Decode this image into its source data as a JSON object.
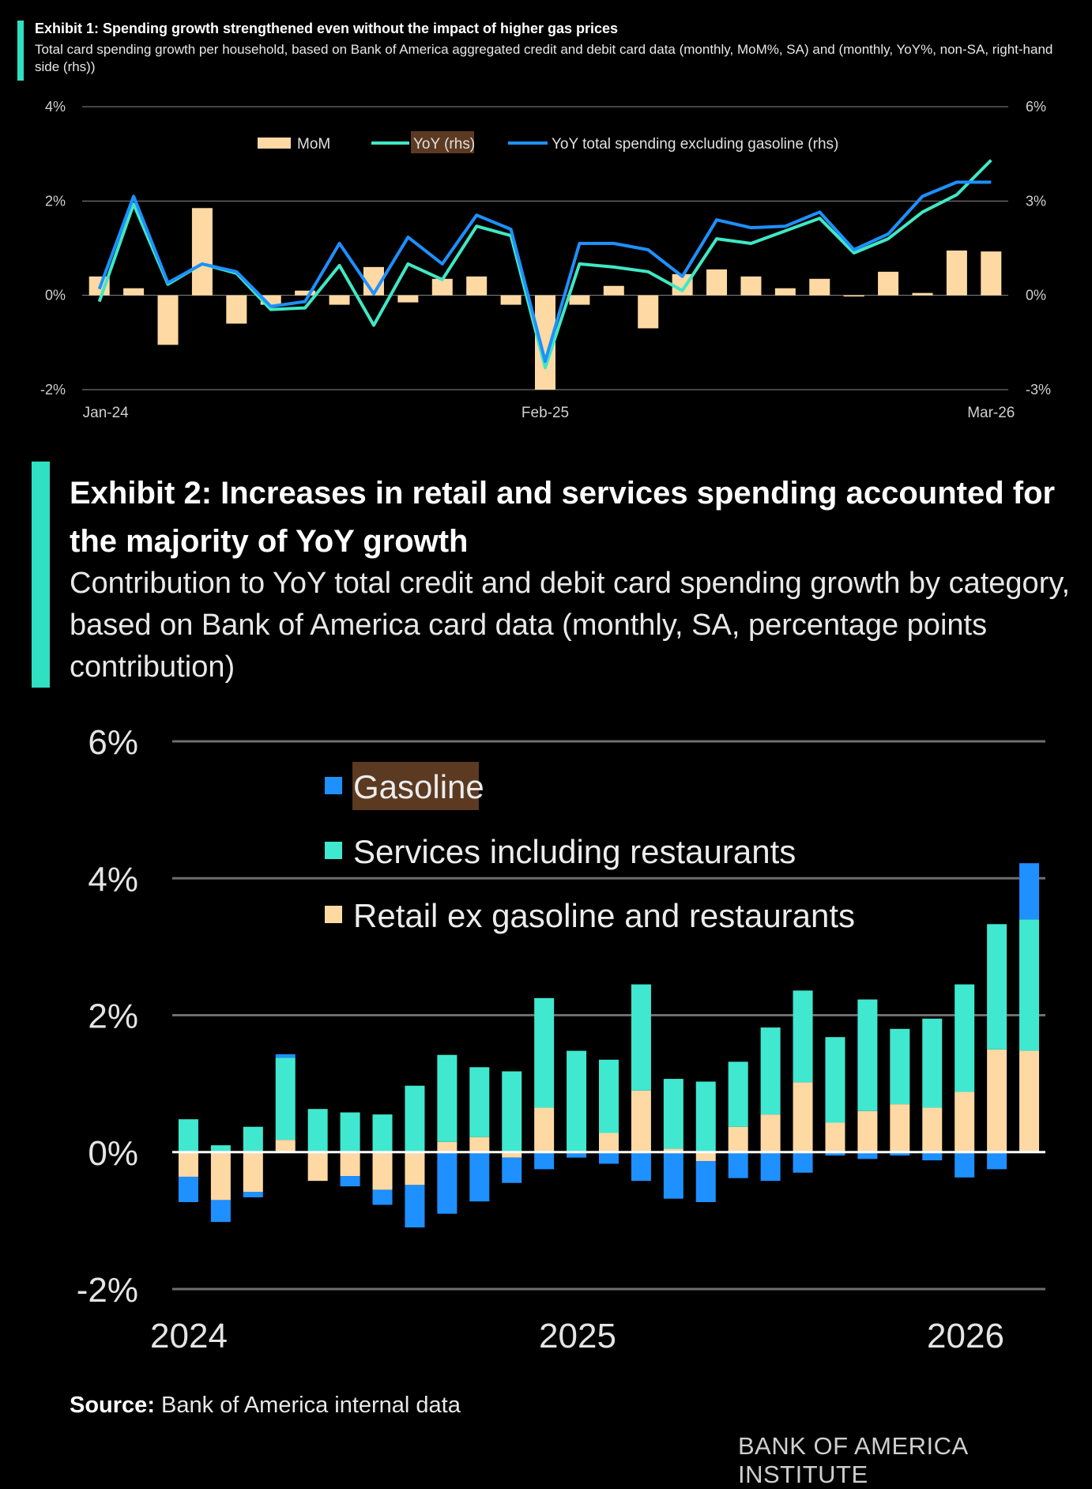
{
  "exhibit1": {
    "title": "Exhibit 1: Spending growth strengthened even without the impact of higher gas prices",
    "subtitle": "Total card spending growth per household, based on Bank of America aggregated credit and debit card data (monthly, MoM%, SA) and (monthly, YoY%, non-SA, right-hand side (rhs))"
  },
  "exhibit2": {
    "title": "Exhibit 2: Increases in retail and services spending accounted for the majority of YoY growth",
    "subtitle": "Contribution to YoY total credit and debit card spending growth by category, based on Bank of America card data (monthly, SA, percentage points contribution)"
  },
  "footer": {
    "source_label": "Source:",
    "source_text": " Bank of America internal data",
    "brand": "BANK OF AMERICA INSTITUTE"
  },
  "colors": {
    "mom": "#fed9a3",
    "yoy": "#40e8c4",
    "yoy_ex_gas": "#1e90ff",
    "gasoline": "#1e90ff",
    "services": "#40e8cf",
    "retail": "#fed9a3",
    "accent": "#2fe0c2",
    "highlight": "#5c3a22"
  },
  "chart_data": [
    {
      "type": "bar+line",
      "title": "Exhibit 1",
      "categories": [
        "Jan-24",
        "Feb-24",
        "Mar-24",
        "Apr-24",
        "May-24",
        "Jun-24",
        "Jul-24",
        "Aug-24",
        "Sep-24",
        "Oct-24",
        "Nov-24",
        "Dec-24",
        "Jan-25",
        "Feb-25",
        "Mar-25",
        "Apr-25",
        "May-25",
        "Jun-25",
        "Jul-25",
        "Aug-25",
        "Sep-25",
        "Oct-25",
        "Nov-25",
        "Dec-25",
        "Jan-26",
        "Feb-26",
        "Mar-26"
      ],
      "x_tick_labels": [
        "Jan-24",
        "Feb-25",
        "Mar-26"
      ],
      "y_left": {
        "ticks": [
          "4%",
          "2%",
          "0%",
          "-2%"
        ],
        "ylim": [
          -2,
          4
        ]
      },
      "y_right": {
        "ticks": [
          "6%",
          "3%",
          "0%",
          "-3%"
        ],
        "ylim": [
          -3,
          6
        ]
      },
      "legend": [
        "MoM",
        "YoY (rhs)",
        "YoY total spending excluding gasoline (rhs)"
      ],
      "series": [
        {
          "name": "MoM",
          "axis": "left",
          "kind": "bar",
          "values": [
            0.4,
            0.15,
            -1.05,
            1.85,
            -0.6,
            -0.2,
            0.1,
            -0.2,
            0.6,
            -0.15,
            0.35,
            0.4,
            -0.2,
            -2.0,
            -0.2,
            0.2,
            -0.7,
            0.45,
            0.55,
            0.4,
            0.15,
            0.35,
            0.0,
            0.5,
            0.05,
            0.95,
            0.93
          ]
        },
        {
          "name": "YoY (rhs)",
          "axis": "right",
          "kind": "line",
          "values": [
            -0.2,
            2.9,
            0.35,
            1.0,
            0.7,
            -0.45,
            -0.4,
            0.95,
            -0.95,
            1.0,
            0.5,
            2.2,
            1.9,
            -2.3,
            1.0,
            0.9,
            0.75,
            0.15,
            1.8,
            1.65,
            2.05,
            2.45,
            1.35,
            1.8,
            2.65,
            3.2,
            4.3
          ]
        },
        {
          "name": "YoY total spending excluding gasoline (rhs)",
          "axis": "right",
          "kind": "line",
          "values": [
            0.2,
            3.15,
            0.4,
            1.0,
            0.75,
            -0.35,
            -0.2,
            1.65,
            0.05,
            1.85,
            1.0,
            2.55,
            2.1,
            -2.1,
            1.65,
            1.65,
            1.45,
            0.6,
            2.4,
            2.15,
            2.2,
            2.65,
            1.45,
            1.95,
            3.15,
            3.6,
            3.6
          ]
        }
      ]
    },
    {
      "type": "stacked-bar",
      "title": "Exhibit 2",
      "categories": [
        "Jan-24",
        "Feb-24",
        "Mar-24",
        "Apr-24",
        "May-24",
        "Jun-24",
        "Jul-24",
        "Aug-24",
        "Sep-24",
        "Oct-24",
        "Nov-24",
        "Dec-24",
        "Jan-25",
        "Feb-25",
        "Mar-25",
        "Apr-25",
        "May-25",
        "Jun-25",
        "Jul-25",
        "Aug-25",
        "Sep-25",
        "Oct-25",
        "Nov-25",
        "Dec-25",
        "Jan-26",
        "Feb-26",
        "Mar-26"
      ],
      "x_tick_labels": [
        "2024",
        "2025",
        "2026"
      ],
      "y_ticks": [
        "6%",
        "4%",
        "2%",
        "0%",
        "-2%"
      ],
      "ylim": [
        -2,
        6
      ],
      "legend": [
        "Gasoline",
        "Services including restaurants",
        "Retail ex gasoline and restaurants"
      ],
      "series": [
        {
          "name": "Retail ex gasoline and restaurants",
          "values": [
            -0.36,
            -0.7,
            -0.58,
            0.18,
            -0.42,
            -0.35,
            -0.55,
            -0.48,
            0.15,
            0.22,
            -0.08,
            0.65,
            0.0,
            0.28,
            0.9,
            0.05,
            -0.13,
            0.37,
            0.55,
            1.02,
            0.43,
            0.6,
            0.7,
            0.65,
            0.88,
            1.5,
            1.48
          ]
        },
        {
          "name": "Services including restaurants",
          "values": [
            0.48,
            0.1,
            0.37,
            1.2,
            0.63,
            0.58,
            0.55,
            0.97,
            1.27,
            1.02,
            1.18,
            1.6,
            1.48,
            1.07,
            1.55,
            1.02,
            1.03,
            0.95,
            1.27,
            1.34,
            1.25,
            1.63,
            1.1,
            1.3,
            1.57,
            1.83,
            1.92
          ]
        },
        {
          "name": "Gasoline",
          "values": [
            -0.37,
            -0.32,
            -0.08,
            0.05,
            0.0,
            -0.15,
            -0.22,
            -0.62,
            -0.9,
            -0.72,
            -0.37,
            -0.25,
            -0.08,
            -0.17,
            -0.42,
            -0.68,
            -0.6,
            -0.38,
            -0.42,
            -0.3,
            -0.05,
            -0.1,
            -0.05,
            -0.12,
            -0.37,
            -0.25,
            0.82
          ]
        }
      ]
    }
  ]
}
